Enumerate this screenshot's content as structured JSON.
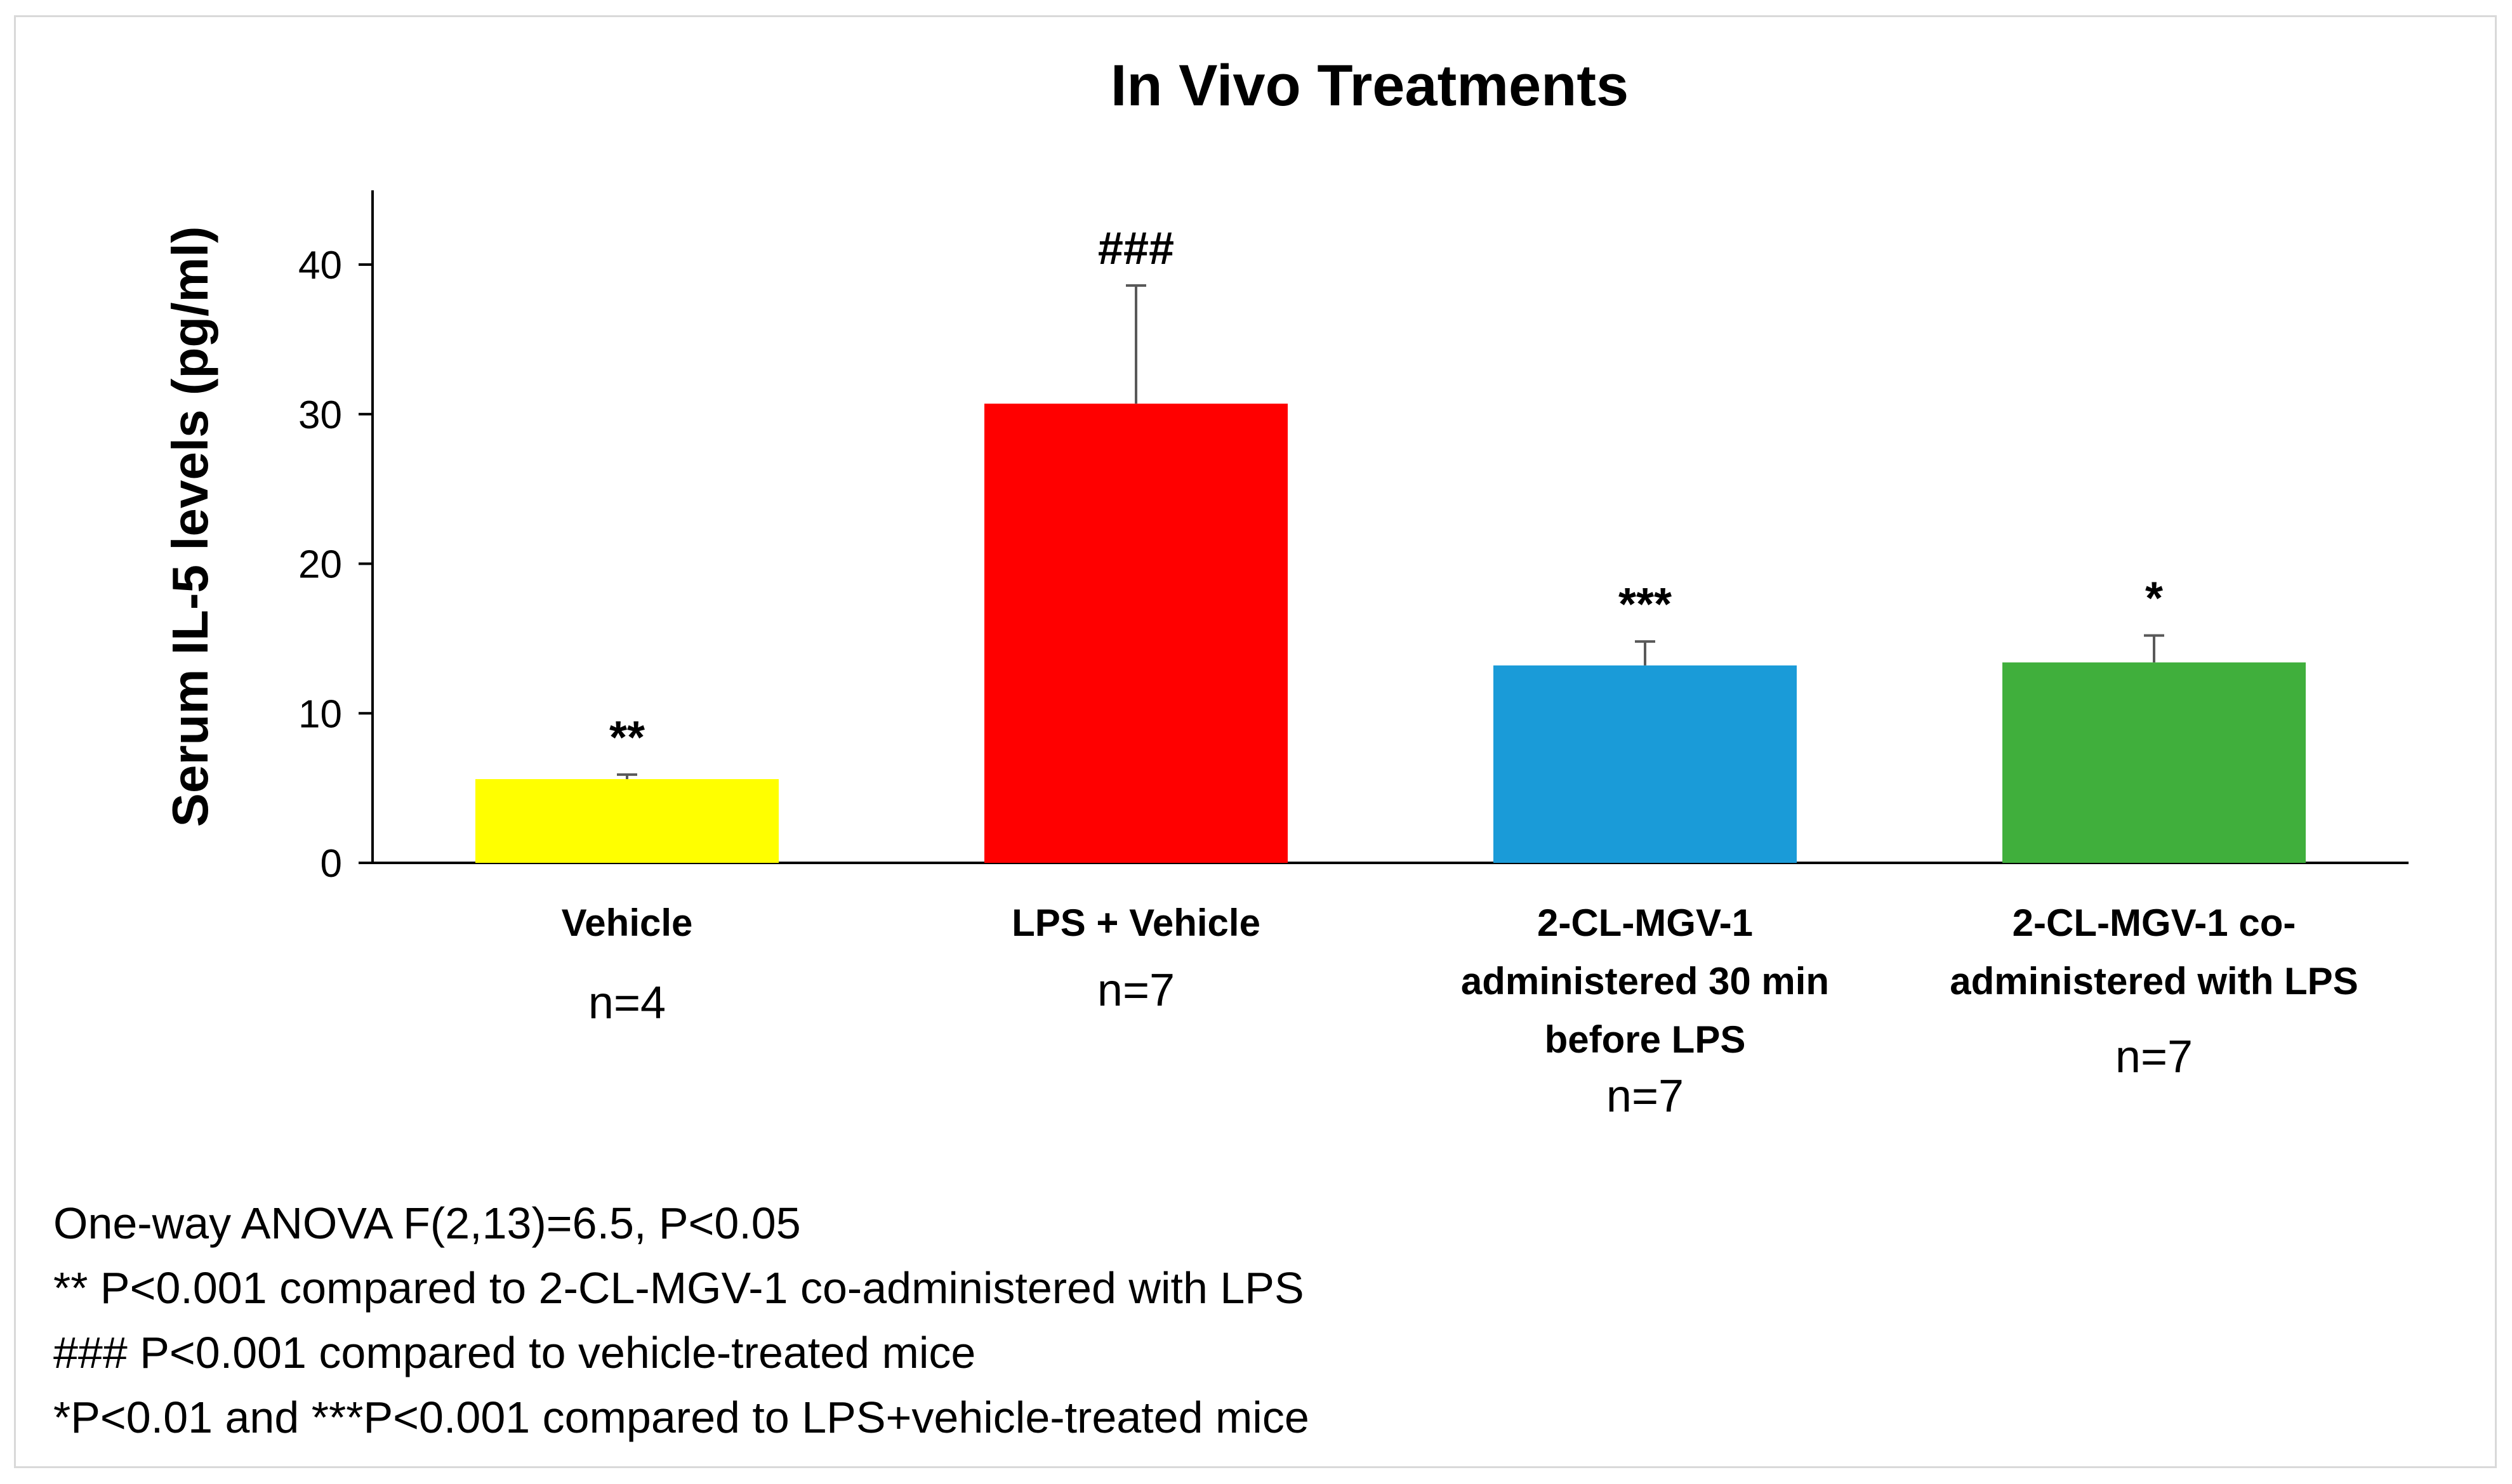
{
  "chart_data": {
    "type": "bar",
    "title": "In Vivo Treatments",
    "xlabel": "",
    "ylabel": "Serum IL-5 levels (pg/ml)",
    "ylim": [
      0,
      45
    ],
    "yticks": [
      0,
      10,
      20,
      30,
      40
    ],
    "grid": false,
    "categories": [
      {
        "lines": [
          "Vehicle"
        ],
        "n": "n=4"
      },
      {
        "lines": [
          "LPS + Vehicle"
        ],
        "n": "n=7"
      },
      {
        "lines": [
          "2-CL-MGV-1",
          "administered 30 min",
          "before LPS"
        ],
        "n": "n=7"
      },
      {
        "lines": [
          "2-CL-MGV-1 co-",
          "administered with LPS"
        ],
        "n": "n=7"
      }
    ],
    "values": [
      5.6,
      30.7,
      13.2,
      13.4
    ],
    "errors": [
      0.3,
      7.9,
      1.6,
      1.8
    ],
    "colors": [
      "#ffff00",
      "#ff0000",
      "#1a9bd8",
      "#40af3c"
    ],
    "significance": [
      "**",
      "###",
      "***",
      "*"
    ]
  },
  "footnotes": [
    "One-way ANOVA F(2,13)=6.5, P<0.05",
    "** P<0.001 compared to 2-CL-MGV-1 co-administered with LPS",
    "### P<0.001 compared to vehicle-treated mice",
    "*P<0.01 and ***P<0.001 compared to LPS+vehicle-treated mice"
  ]
}
